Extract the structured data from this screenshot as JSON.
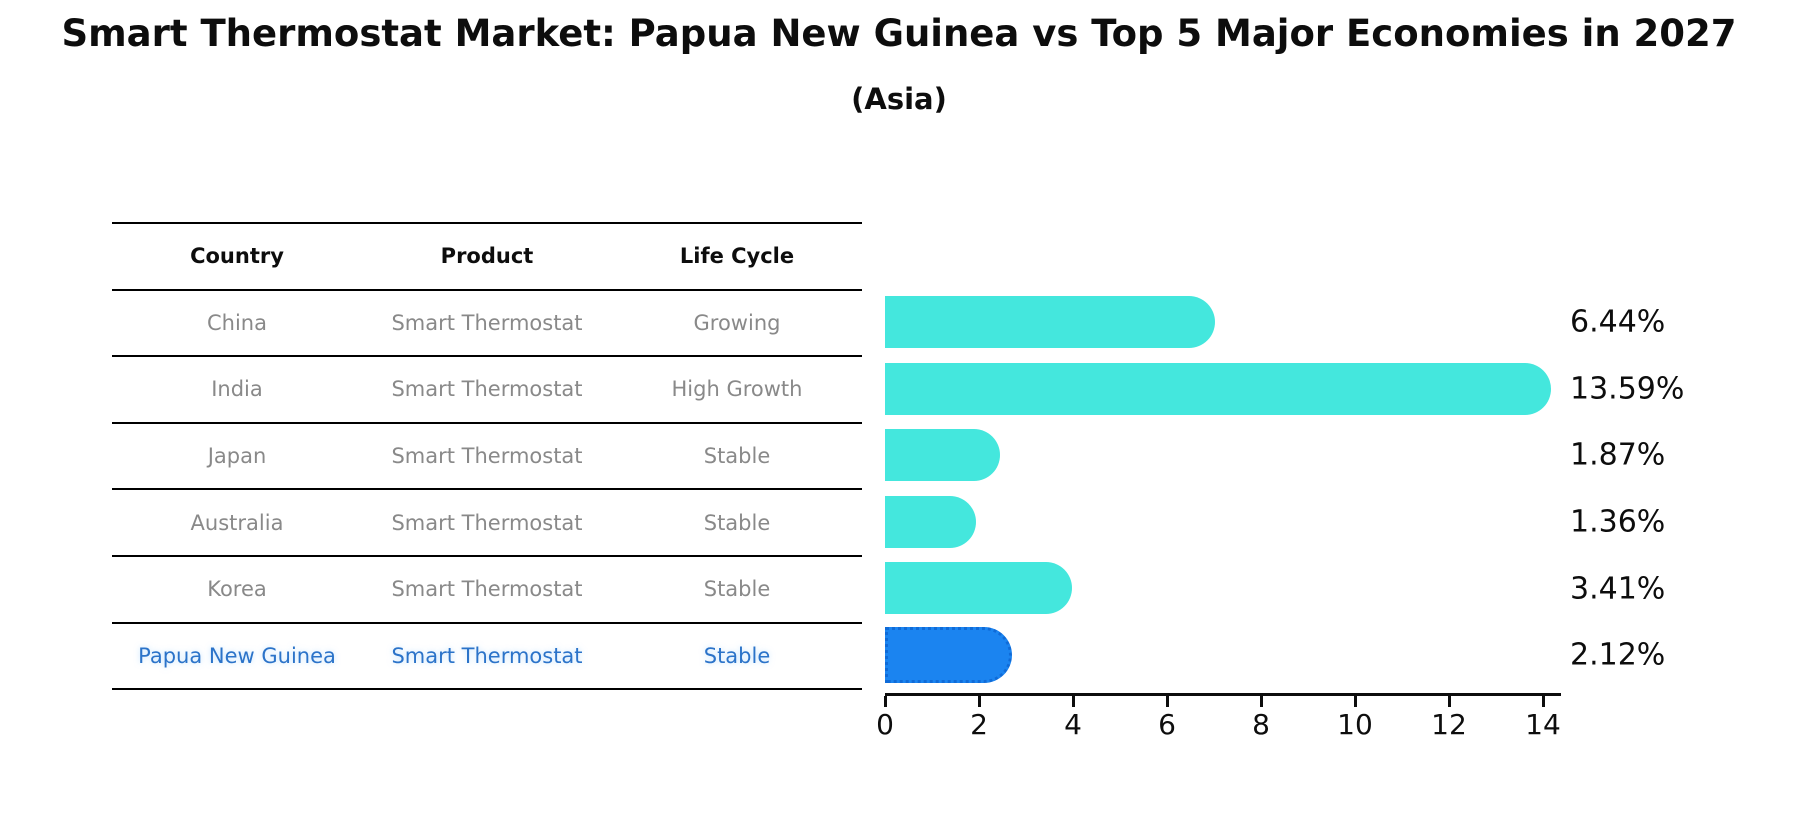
{
  "title": "Smart Thermostat Market: Papua New Guinea vs Top 5 Major Economies in 2027",
  "subtitle": "(Asia)",
  "colors": {
    "bar": "#44e7dd",
    "highlight_bar": "#1b84f0",
    "highlight_bar_dots": "#0f6bd8",
    "highlight_text": "#2b73c9",
    "table_text": "#898989",
    "header_text": "#0d0d0d",
    "axis": "#0d0d0d",
    "background": "#ffffff"
  },
  "table": {
    "headers": [
      "Country",
      "Product",
      "Life Cycle"
    ],
    "rows": [
      {
        "country": "China",
        "product": "Smart Thermostat",
        "life_cycle": "Growing",
        "highlight": false
      },
      {
        "country": "India",
        "product": "Smart Thermostat",
        "life_cycle": "High Growth",
        "highlight": false
      },
      {
        "country": "Japan",
        "product": "Smart Thermostat",
        "life_cycle": "Stable",
        "highlight": false
      },
      {
        "country": "Australia",
        "product": "Smart Thermostat",
        "life_cycle": "Stable",
        "highlight": false
      },
      {
        "country": "Korea",
        "product": "Smart Thermostat",
        "life_cycle": "Stable",
        "highlight": false
      },
      {
        "country": "Papua New Guinea",
        "product": "Smart Thermostat",
        "life_cycle": "Stable",
        "highlight": true
      }
    ]
  },
  "chart_data": {
    "type": "bar",
    "orientation": "horizontal",
    "title": "Smart Thermostat Market: Papua New Guinea vs Top 5 Major Economies in 2027 (Asia)",
    "categories": [
      "China",
      "India",
      "Japan",
      "Australia",
      "Korea",
      "Papua New Guinea"
    ],
    "values": [
      6.44,
      13.59,
      1.87,
      1.36,
      3.41,
      2.12
    ],
    "labels": [
      "6.44%",
      "13.59%",
      "1.87%",
      "1.36%",
      "3.41%",
      "2.12%"
    ],
    "highlight_index": 5,
    "xlabel": "",
    "ylabel": "",
    "xlim": [
      0,
      14
    ],
    "x_ticks": [
      0,
      2,
      4,
      6,
      8,
      10,
      12,
      14
    ],
    "grid": false,
    "legend": false
  }
}
